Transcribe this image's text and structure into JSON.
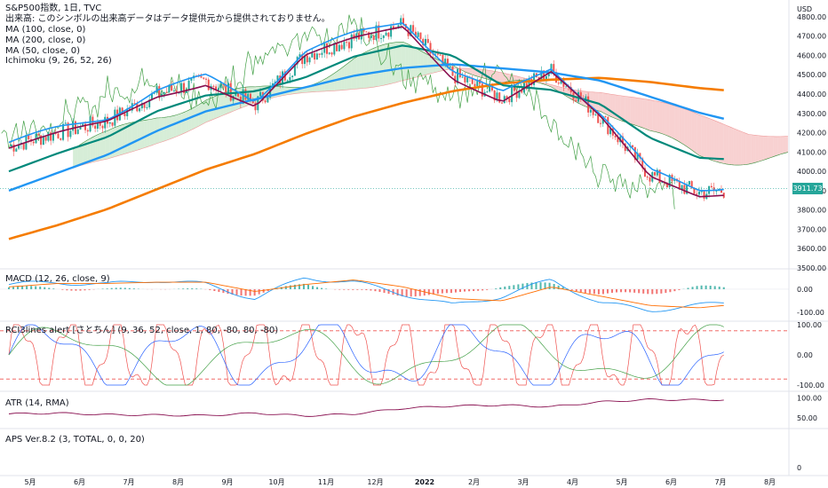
{
  "header": {
    "title": "S&P500指数, 1日, TVC",
    "notice": "出来高: このシンボルの出来高データはデータ提供元から提供されておりません。",
    "indicators": [
      "MA (100, close, 0)",
      "MA (200, close, 0)",
      "MA (50, close, 0)",
      "Ichimoku (9, 26, 52, 26)"
    ]
  },
  "panes": {
    "macd_label": "MACD (12, 26, close, 9)",
    "rci_label": "RCI3lines alert [さとちん] (9, 36, 52, close, 1, 80, -80, 80, -80)",
    "atr_label": "ATR (14, RMA)",
    "aps_label": "APS Ver.8.2 (3, TOTAL, 0, 0, 20)"
  },
  "axis": {
    "currency": "USD",
    "price_ticks": [
      "4800.00",
      "4700.00",
      "4600.00",
      "4500.00",
      "4400.00",
      "4300.00",
      "4200.00",
      "4100.00",
      "4000.00",
      "3900.00",
      "3800.00",
      "3700.00",
      "3600.00",
      "3500.00"
    ],
    "macd_ticks": [
      "0.00",
      "-100.00"
    ],
    "rci_ticks": [
      "100.00",
      "0.00",
      "-100.00"
    ],
    "atr_ticks": [
      "100.00",
      "50.00"
    ],
    "aps_ticks": [
      "0"
    ],
    "last_price": "3911.73",
    "x_ticks": [
      "5月",
      "6月",
      "7月",
      "8月",
      "9月",
      "10月",
      "11月",
      "12月",
      "2022",
      "2月",
      "3月",
      "4月",
      "5月",
      "6月",
      "7月",
      "8月"
    ]
  },
  "colors": {
    "ma50": "#00897b",
    "ma100": "#2196f3",
    "ma200": "#f57c00",
    "tenkan": "#2196f3",
    "kijun": "#880e4f",
    "span_a": "#388e3c",
    "chikou": "#43a047",
    "cloud_up": "#a5d6a7",
    "cloud_down": "#ef9a9a",
    "candle_up": "#26a69a",
    "candle_down": "#ef5350",
    "macd": "#2196f3",
    "signal": "#ff6d00",
    "hist_up": "#26a69a",
    "hist_down": "#ef5350",
    "rci_short": "#ef5350",
    "rci_mid": "#2962ff",
    "rci_long": "#43a047",
    "atr": "#880e4f"
  },
  "chart_data": {
    "type": "line",
    "ylim": [
      3500,
      4850
    ],
    "months": [
      "2021-05",
      "2021-06",
      "2021-07",
      "2021-08",
      "2021-09",
      "2021-10",
      "2021-11",
      "2021-12",
      "2022-01",
      "2022-02",
      "2022-03",
      "2022-04",
      "2022-05",
      "2022-06",
      "2022-07",
      "2022-08"
    ],
    "close": [
      4130,
      4200,
      4260,
      4400,
      4470,
      4350,
      4600,
      4690,
      4760,
      4500,
      4380,
      4520,
      4280,
      3980,
      3890,
      3911.73
    ],
    "ma50": [
      4000,
      4090,
      4170,
      4300,
      4380,
      4400,
      4470,
      4580,
      4640,
      4590,
      4440,
      4420,
      4350,
      4180,
      4080,
      4070
    ],
    "ma100": [
      3900,
      3990,
      4080,
      4200,
      4300,
      4360,
      4420,
      4480,
      4520,
      4540,
      4520,
      4500,
      4460,
      4380,
      4300,
      4240
    ],
    "ma200": [
      3650,
      3720,
      3800,
      3900,
      4000,
      4080,
      4180,
      4270,
      4340,
      4400,
      4440,
      4460,
      4470,
      4450,
      4420,
      4400
    ],
    "macd": [
      20,
      30,
      20,
      40,
      20,
      -40,
      50,
      30,
      -20,
      -70,
      -30,
      40,
      -60,
      -90,
      -70,
      -50
    ],
    "signal": [
      10,
      25,
      25,
      30,
      30,
      -10,
      20,
      40,
      10,
      -40,
      -50,
      10,
      -30,
      -70,
      -80,
      -60
    ],
    "atr": [
      60,
      62,
      58,
      57,
      56,
      62,
      55,
      60,
      74,
      80,
      82,
      78,
      90,
      96,
      95,
      96
    ]
  }
}
